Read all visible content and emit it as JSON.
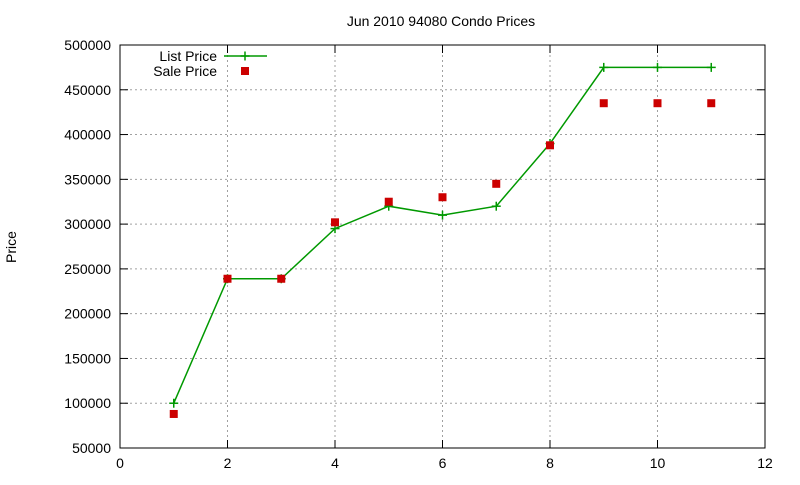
{
  "chart_data": {
    "type": "line",
    "title": "Jun 2010 94080 Condo Prices",
    "xlabel": "",
    "ylabel": "Price",
    "xlim": [
      0,
      12
    ],
    "ylim": [
      50000,
      500000
    ],
    "x_ticks": [
      "0",
      "2",
      "4",
      "6",
      "8",
      "10",
      "12"
    ],
    "y_ticks": [
      "50000",
      "100000",
      "150000",
      "200000",
      "250000",
      "300000",
      "350000",
      "400000",
      "450000",
      "500000"
    ],
    "grid": true,
    "legend_position": "top-left",
    "series": [
      {
        "name": "List Price",
        "style": "line-with-plus-markers",
        "color": "#009900",
        "x": [
          1,
          2,
          3,
          4,
          5,
          6,
          7,
          8,
          9,
          10,
          11
        ],
        "values": [
          100000,
          239000,
          239000,
          295000,
          320000,
          310000,
          320000,
          390000,
          475000,
          475000,
          475000
        ]
      },
      {
        "name": "Sale Price",
        "style": "square-markers",
        "color": "#cc0000",
        "x": [
          1,
          2,
          3,
          4,
          5,
          6,
          7,
          8,
          9,
          10,
          11
        ],
        "values": [
          88000,
          239000,
          239000,
          302000,
          325000,
          330000,
          345000,
          388000,
          435000,
          435000,
          435000
        ]
      }
    ]
  }
}
